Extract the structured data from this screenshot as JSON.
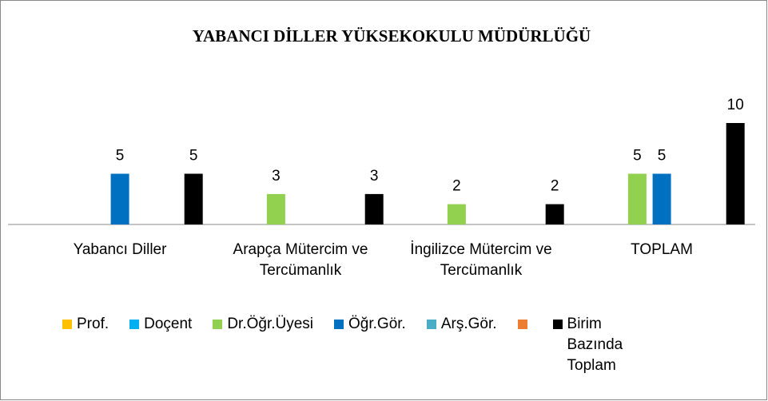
{
  "chart_data": {
    "type": "bar",
    "title": "YABANCI DİLLER YÜKSEKOKULU MÜDÜRLÜĞÜ",
    "categories": [
      "Yabancı Diller",
      "Arapça Mütercim ve Tercümanlık",
      "İngilizce Mütercim ve Tercümanlık",
      "TOPLAM"
    ],
    "series": [
      {
        "name": "Prof.",
        "color": "#ffc000",
        "values": [
          null,
          null,
          null,
          null
        ]
      },
      {
        "name": "Doçent",
        "color": "#00b0f0",
        "values": [
          null,
          null,
          null,
          null
        ]
      },
      {
        "name": "Dr.Öğr.Üyesi",
        "color": "#92d050",
        "values": [
          null,
          3,
          2,
          5
        ]
      },
      {
        "name": "Öğr.Gör.",
        "color": "#0070c0",
        "values": [
          5,
          null,
          null,
          5
        ]
      },
      {
        "name": "Arş.Gör.",
        "color": "#4bacc6",
        "values": [
          null,
          null,
          null,
          null
        ]
      },
      {
        "color": "#ed7d31",
        "values": [
          null,
          null,
          null,
          null
        ]
      },
      {
        "name": "Birim Bazında Toplam",
        "color": "#000000",
        "values": [
          5,
          3,
          2,
          10
        ]
      }
    ],
    "ylim": [
      0,
      12
    ]
  }
}
